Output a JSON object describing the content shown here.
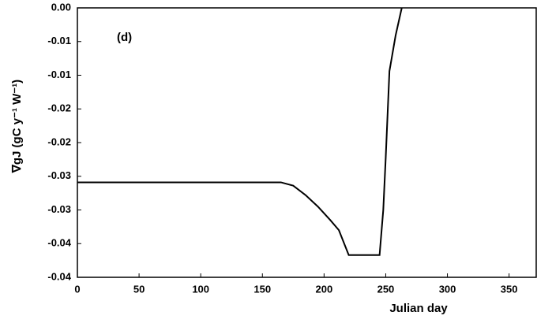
{
  "chart_data": {
    "type": "line",
    "annotation": "(d)",
    "x_label": "Julian day",
    "y_label": "∇gJ (gC y⁻¹ W⁻¹)",
    "x": [
      0,
      165,
      175,
      185,
      195,
      205,
      212,
      220,
      245,
      248,
      250,
      253,
      258,
      263
    ],
    "series": [
      {
        "color": "#000000",
        "values": [
          -0.0259,
          -0.0259,
          -0.0264,
          -0.0278,
          -0.0295,
          -0.0315,
          -0.033,
          -0.0367,
          -0.0367,
          -0.03,
          -0.0222,
          -0.0094,
          -0.0041,
          0
        ]
      }
    ],
    "xlim": [
      0,
      372
    ],
    "xticks": [
      0,
      50,
      100,
      150,
      200,
      250,
      300,
      350
    ],
    "ylim": [
      -0.04,
      0
    ],
    "yticks": [
      {
        "value": 0,
        "label": "0.00"
      },
      {
        "value": -0.005,
        "label": "-0.01"
      },
      {
        "value": -0.01,
        "label": "-0.01"
      },
      {
        "value": -0.015,
        "label": "-0.02"
      },
      {
        "value": -0.02,
        "label": "-0.02"
      },
      {
        "value": -0.025,
        "label": "-0.03"
      },
      {
        "value": -0.03,
        "label": "-0.03"
      },
      {
        "value": -0.035,
        "label": "-0.04"
      },
      {
        "value": -0.04,
        "label": "-0.04"
      }
    ],
    "grid": false
  }
}
